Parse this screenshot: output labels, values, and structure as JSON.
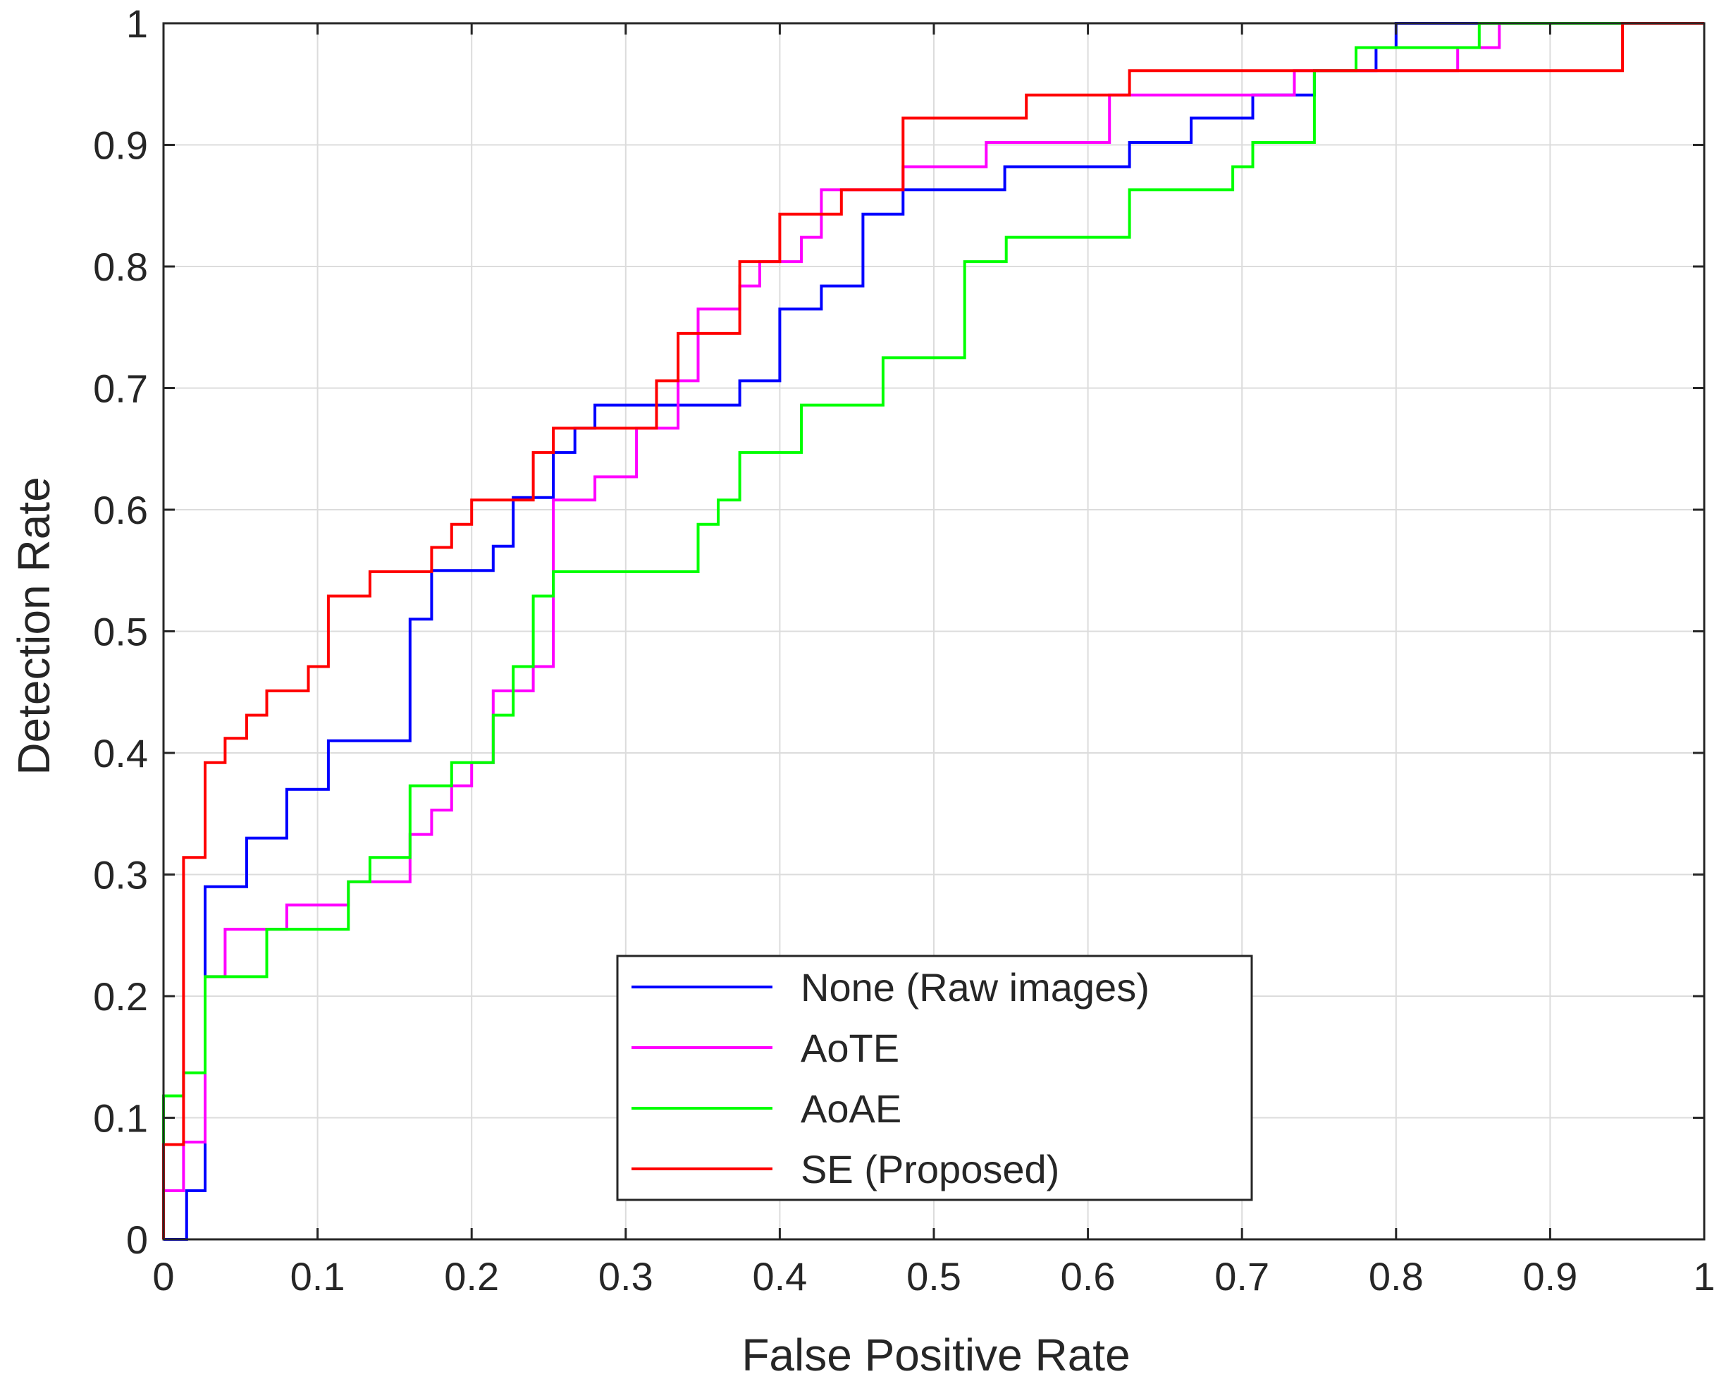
{
  "chart_data": {
    "type": "line",
    "title": "",
    "xlabel": "False Positive Rate",
    "ylabel": "Detection Rate",
    "xlim": [
      0,
      1
    ],
    "ylim": [
      0,
      1
    ],
    "grid": true,
    "legend_placement": "bottom-center",
    "x_ticks": [
      "0",
      "0.1",
      "0.2",
      "0.3",
      "0.4",
      "0.5",
      "0.6",
      "0.7",
      "0.8",
      "0.9",
      "1"
    ],
    "y_ticks": [
      "0",
      "0.1",
      "0.2",
      "0.3",
      "0.4",
      "0.5",
      "0.6",
      "0.7",
      "0.8",
      "0.9",
      "1"
    ],
    "series": [
      {
        "name": "None (Raw images)",
        "color": "#0000ff",
        "points": [
          [
            0,
            0
          ],
          [
            0.015,
            0
          ],
          [
            0.015,
            0.04
          ],
          [
            0.027,
            0.04
          ],
          [
            0.027,
            0.29
          ],
          [
            0.054,
            0.29
          ],
          [
            0.054,
            0.33
          ],
          [
            0.08,
            0.33
          ],
          [
            0.08,
            0.37
          ],
          [
            0.107,
            0.37
          ],
          [
            0.107,
            0.41
          ],
          [
            0.16,
            0.41
          ],
          [
            0.16,
            0.51
          ],
          [
            0.174,
            0.51
          ],
          [
            0.174,
            0.55
          ],
          [
            0.214,
            0.55
          ],
          [
            0.214,
            0.57
          ],
          [
            0.227,
            0.57
          ],
          [
            0.227,
            0.61
          ],
          [
            0.253,
            0.61
          ],
          [
            0.253,
            0.647
          ],
          [
            0.267,
            0.647
          ],
          [
            0.267,
            0.667
          ],
          [
            0.28,
            0.667
          ],
          [
            0.28,
            0.686
          ],
          [
            0.374,
            0.686
          ],
          [
            0.374,
            0.706
          ],
          [
            0.4,
            0.706
          ],
          [
            0.4,
            0.765
          ],
          [
            0.427,
            0.765
          ],
          [
            0.427,
            0.784
          ],
          [
            0.454,
            0.784
          ],
          [
            0.454,
            0.843
          ],
          [
            0.48,
            0.843
          ],
          [
            0.48,
            0.863
          ],
          [
            0.546,
            0.863
          ],
          [
            0.546,
            0.882
          ],
          [
            0.627,
            0.882
          ],
          [
            0.627,
            0.902
          ],
          [
            0.667,
            0.902
          ],
          [
            0.667,
            0.922
          ],
          [
            0.707,
            0.922
          ],
          [
            0.707,
            0.941
          ],
          [
            0.747,
            0.941
          ],
          [
            0.747,
            0.961
          ],
          [
            0.787,
            0.961
          ],
          [
            0.787,
            0.98
          ],
          [
            0.8,
            0.98
          ],
          [
            0.8,
            1
          ],
          [
            1,
            1
          ]
        ]
      },
      {
        "name": "AoTE",
        "color": "#ff00ff",
        "points": [
          [
            0,
            0
          ],
          [
            0,
            0.04
          ],
          [
            0.013,
            0.04
          ],
          [
            0.013,
            0.08
          ],
          [
            0.027,
            0.08
          ],
          [
            0.027,
            0.216
          ],
          [
            0.04,
            0.216
          ],
          [
            0.04,
            0.255
          ],
          [
            0.08,
            0.255
          ],
          [
            0.08,
            0.275
          ],
          [
            0.12,
            0.275
          ],
          [
            0.12,
            0.294
          ],
          [
            0.16,
            0.294
          ],
          [
            0.16,
            0.333
          ],
          [
            0.174,
            0.333
          ],
          [
            0.174,
            0.353
          ],
          [
            0.187,
            0.353
          ],
          [
            0.187,
            0.373
          ],
          [
            0.2,
            0.373
          ],
          [
            0.2,
            0.392
          ],
          [
            0.214,
            0.392
          ],
          [
            0.214,
            0.451
          ],
          [
            0.24,
            0.451
          ],
          [
            0.24,
            0.471
          ],
          [
            0.253,
            0.471
          ],
          [
            0.253,
            0.608
          ],
          [
            0.28,
            0.608
          ],
          [
            0.28,
            0.627
          ],
          [
            0.307,
            0.627
          ],
          [
            0.307,
            0.667
          ],
          [
            0.334,
            0.667
          ],
          [
            0.334,
            0.706
          ],
          [
            0.347,
            0.706
          ],
          [
            0.347,
            0.765
          ],
          [
            0.374,
            0.765
          ],
          [
            0.374,
            0.784
          ],
          [
            0.387,
            0.784
          ],
          [
            0.387,
            0.804
          ],
          [
            0.414,
            0.804
          ],
          [
            0.414,
            0.824
          ],
          [
            0.427,
            0.824
          ],
          [
            0.427,
            0.863
          ],
          [
            0.48,
            0.863
          ],
          [
            0.48,
            0.882
          ],
          [
            0.534,
            0.882
          ],
          [
            0.534,
            0.902
          ],
          [
            0.614,
            0.902
          ],
          [
            0.614,
            0.941
          ],
          [
            0.734,
            0.941
          ],
          [
            0.734,
            0.961
          ],
          [
            0.84,
            0.961
          ],
          [
            0.84,
            0.98
          ],
          [
            0.867,
            0.98
          ],
          [
            0.867,
            1
          ],
          [
            1,
            1
          ]
        ]
      },
      {
        "name": "AoAE",
        "color": "#00ff00",
        "points": [
          [
            0,
            0
          ],
          [
            0,
            0.118
          ],
          [
            0.013,
            0.118
          ],
          [
            0.013,
            0.137
          ],
          [
            0.027,
            0.137
          ],
          [
            0.027,
            0.216
          ],
          [
            0.067,
            0.216
          ],
          [
            0.067,
            0.255
          ],
          [
            0.12,
            0.255
          ],
          [
            0.12,
            0.294
          ],
          [
            0.134,
            0.294
          ],
          [
            0.134,
            0.314
          ],
          [
            0.16,
            0.314
          ],
          [
            0.16,
            0.373
          ],
          [
            0.187,
            0.373
          ],
          [
            0.187,
            0.392
          ],
          [
            0.214,
            0.392
          ],
          [
            0.214,
            0.431
          ],
          [
            0.227,
            0.431
          ],
          [
            0.227,
            0.471
          ],
          [
            0.24,
            0.471
          ],
          [
            0.24,
            0.529
          ],
          [
            0.253,
            0.529
          ],
          [
            0.253,
            0.549
          ],
          [
            0.347,
            0.549
          ],
          [
            0.347,
            0.588
          ],
          [
            0.36,
            0.588
          ],
          [
            0.36,
            0.608
          ],
          [
            0.374,
            0.608
          ],
          [
            0.374,
            0.647
          ],
          [
            0.4,
            0.647
          ],
          [
            0.4,
            0.647
          ],
          [
            0.414,
            0.647
          ],
          [
            0.414,
            0.686
          ],
          [
            0.467,
            0.686
          ],
          [
            0.467,
            0.725
          ],
          [
            0.52,
            0.725
          ],
          [
            0.52,
            0.804
          ],
          [
            0.547,
            0.804
          ],
          [
            0.547,
            0.824
          ],
          [
            0.627,
            0.824
          ],
          [
            0.627,
            0.863
          ],
          [
            0.694,
            0.863
          ],
          [
            0.694,
            0.882
          ],
          [
            0.707,
            0.882
          ],
          [
            0.707,
            0.902
          ],
          [
            0.747,
            0.902
          ],
          [
            0.747,
            0.961
          ],
          [
            0.774,
            0.961
          ],
          [
            0.774,
            0.98
          ],
          [
            0.854,
            0.98
          ],
          [
            0.854,
            1
          ],
          [
            1,
            1
          ]
        ]
      },
      {
        "name": "SE (Proposed)",
        "color": "#ff0000",
        "points": [
          [
            0,
            0
          ],
          [
            0,
            0.078
          ],
          [
            0.013,
            0.078
          ],
          [
            0.013,
            0.314
          ],
          [
            0.027,
            0.314
          ],
          [
            0.027,
            0.392
          ],
          [
            0.04,
            0.392
          ],
          [
            0.04,
            0.412
          ],
          [
            0.054,
            0.412
          ],
          [
            0.054,
            0.431
          ],
          [
            0.067,
            0.431
          ],
          [
            0.067,
            0.451
          ],
          [
            0.094,
            0.451
          ],
          [
            0.094,
            0.471
          ],
          [
            0.107,
            0.471
          ],
          [
            0.107,
            0.529
          ],
          [
            0.134,
            0.529
          ],
          [
            0.134,
            0.549
          ],
          [
            0.174,
            0.549
          ],
          [
            0.174,
            0.569
          ],
          [
            0.187,
            0.569
          ],
          [
            0.187,
            0.588
          ],
          [
            0.2,
            0.588
          ],
          [
            0.2,
            0.608
          ],
          [
            0.24,
            0.608
          ],
          [
            0.24,
            0.647
          ],
          [
            0.253,
            0.647
          ],
          [
            0.253,
            0.667
          ],
          [
            0.32,
            0.667
          ],
          [
            0.32,
            0.706
          ],
          [
            0.334,
            0.706
          ],
          [
            0.334,
            0.745
          ],
          [
            0.374,
            0.745
          ],
          [
            0.374,
            0.804
          ],
          [
            0.4,
            0.804
          ],
          [
            0.4,
            0.843
          ],
          [
            0.44,
            0.843
          ],
          [
            0.44,
            0.863
          ],
          [
            0.48,
            0.863
          ],
          [
            0.48,
            0.922
          ],
          [
            0.56,
            0.922
          ],
          [
            0.56,
            0.941
          ],
          [
            0.627,
            0.941
          ],
          [
            0.627,
            0.961
          ],
          [
            0.947,
            0.961
          ],
          [
            0.947,
            1
          ],
          [
            1,
            1
          ]
        ]
      }
    ]
  }
}
